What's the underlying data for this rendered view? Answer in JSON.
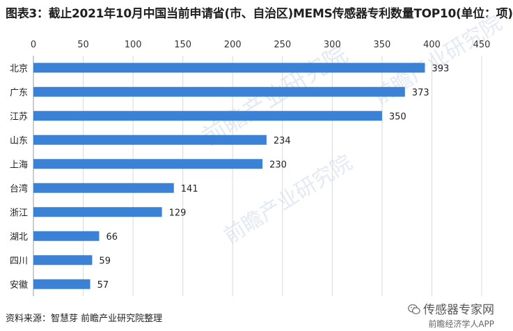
{
  "title": "图表3：截止2021年10月中国当前申请省(市、自治区)MEMS传感器专利数量TOP10(单位：项)",
  "source": "资料来源：智慧芽 前瞻产业研究院整理",
  "watermark": {
    "account": "传感器专家网",
    "app": "前瞻经济学人APP",
    "overlay": "前瞻产业研究院"
  },
  "colors": {
    "bar": "#3b82d6",
    "grid": "#d9d9d9",
    "axis": "#9a9a9a"
  },
  "chart_data": {
    "type": "bar",
    "orientation": "horizontal",
    "title": "图表3：截止2021年10月中国当前申请省(市、自治区)MEMS传感器专利数量TOP10(单位：项)",
    "xlabel": "",
    "ylabel": "",
    "xlim": [
      0,
      450
    ],
    "xticks": [
      0,
      50,
      100,
      150,
      200,
      250,
      300,
      350,
      400,
      450
    ],
    "x_axis_position": "top",
    "grid": true,
    "legend": "none",
    "categories": [
      "北京",
      "广东",
      "江苏",
      "山东",
      "上海",
      "台湾",
      "浙江",
      "湖北",
      "四川",
      "安徽"
    ],
    "values": [
      393,
      373,
      350,
      234,
      230,
      141,
      129,
      66,
      59,
      57
    ]
  }
}
